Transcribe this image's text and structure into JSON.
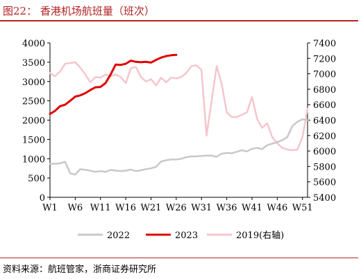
{
  "header": {
    "title": "图22：  香港机场航班量（班次）"
  },
  "footer": {
    "source": "资料来源：航班管家，浙商证券研究所"
  },
  "chart_data": {
    "type": "line",
    "title": "图22：  香港机场航班量（班次）",
    "x_tick_labels": [
      "W1",
      "W6",
      "W11",
      "W16",
      "W21",
      "W26",
      "W31",
      "W36",
      "W41",
      "W46",
      "W51"
    ],
    "y_left": {
      "ticks": [
        0,
        500,
        1000,
        1500,
        2000,
        2500,
        3000,
        3500,
        4000
      ],
      "range": [
        0,
        4000
      ]
    },
    "y_right": {
      "ticks": [
        5400,
        5600,
        5800,
        6000,
        6200,
        6400,
        6600,
        6800,
        7000,
        7200,
        7400
      ],
      "range": [
        5400,
        7400
      ]
    },
    "legend_position": "bottom",
    "grid": false,
    "series": [
      {
        "name": "2022",
        "axis": "left",
        "color": "#c8c8c8",
        "x": [
          1,
          2,
          3,
          4,
          5,
          6,
          7,
          8,
          9,
          10,
          11,
          12,
          13,
          14,
          15,
          16,
          17,
          18,
          19,
          20,
          21,
          22,
          23,
          24,
          25,
          26,
          27,
          28,
          29,
          30,
          31,
          32,
          33,
          34,
          35,
          36,
          37,
          38,
          39,
          40,
          41,
          42,
          43,
          44,
          45,
          46,
          47,
          48,
          49,
          50,
          51,
          52
        ],
        "values": [
          870,
          870,
          880,
          920,
          620,
          590,
          730,
          710,
          690,
          660,
          680,
          660,
          710,
          690,
          680,
          690,
          720,
          680,
          700,
          730,
          750,
          790,
          930,
          960,
          980,
          980,
          1000,
          1040,
          1060,
          1060,
          1070,
          1080,
          1080,
          1050,
          1130,
          1150,
          1140,
          1180,
          1220,
          1190,
          1260,
          1280,
          1250,
          1350,
          1390,
          1430,
          1480,
          1560,
          1850,
          1960,
          2020,
          2000
        ]
      },
      {
        "name": "2023",
        "axis": "left",
        "color": "#e00000",
        "x": [
          1,
          2,
          3,
          4,
          5,
          6,
          7,
          8,
          9,
          10,
          11,
          12,
          13,
          14,
          15,
          16,
          17,
          18,
          19,
          20,
          21,
          22,
          23,
          24,
          25,
          26
        ],
        "values": [
          2160,
          2240,
          2360,
          2400,
          2500,
          2610,
          2640,
          2700,
          2780,
          2850,
          2860,
          2960,
          3180,
          3440,
          3430,
          3460,
          3540,
          3510,
          3500,
          3510,
          3490,
          3560,
          3620,
          3660,
          3680,
          3690
        ]
      },
      {
        "name": "2019(右轴)",
        "axis": "right",
        "color": "#f5c6cc",
        "x": [
          1,
          2,
          3,
          4,
          5,
          6,
          7,
          8,
          9,
          10,
          11,
          12,
          13,
          14,
          15,
          16,
          17,
          18,
          19,
          20,
          21,
          22,
          23,
          24,
          25,
          26,
          27,
          28,
          29,
          30,
          31,
          32,
          33,
          34,
          35,
          36,
          37,
          38,
          39,
          40,
          41,
          42,
          43,
          44,
          45,
          46,
          47,
          48,
          49,
          50,
          51,
          52
        ],
        "values": [
          7010,
          6970,
          7030,
          7130,
          7140,
          7150,
          7080,
          6990,
          6890,
          6960,
          6950,
          6990,
          6970,
          6990,
          6960,
          6880,
          7070,
          7090,
          6960,
          6900,
          6930,
          6850,
          6950,
          6890,
          6950,
          6940,
          6960,
          7010,
          7100,
          7110,
          7050,
          6200,
          6650,
          7100,
          6870,
          6500,
          6440,
          6440,
          6470,
          6500,
          6700,
          6420,
          6300,
          6360,
          6180,
          6100,
          6040,
          6020,
          6010,
          6020,
          6180,
          6550
        ]
      }
    ]
  }
}
